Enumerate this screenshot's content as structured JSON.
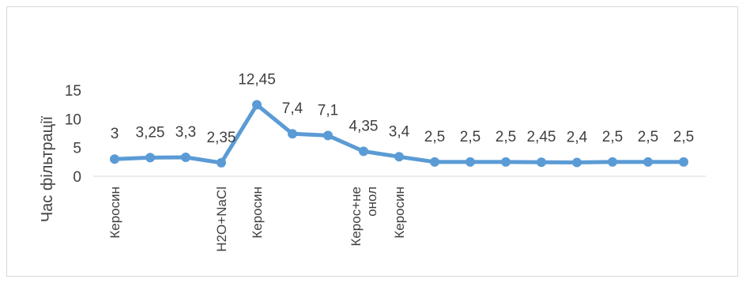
{
  "chart_data": {
    "type": "line",
    "title": "",
    "xlabel": "",
    "ylabel": "Час фільтрації",
    "ylim": [
      0,
      15
    ],
    "yticks": [
      "0",
      "5",
      "10",
      "15"
    ],
    "grid": false,
    "legend": "none",
    "line_color": "#5b9bd5",
    "categories": [
      "Керосин",
      "",
      "",
      "H2O+NaCl",
      "Керосин",
      "",
      "",
      "Керос+не онол",
      "Керосин",
      "",
      "",
      "",
      "",
      "",
      "",
      "",
      ""
    ],
    "category_lines": [
      [
        "Керосин"
      ],
      [],
      [],
      [
        "H2O+NaCl"
      ],
      [
        "Керосин"
      ],
      [],
      [],
      [
        "Керос+не",
        "онол"
      ],
      [
        "Керосин"
      ],
      [],
      [],
      [],
      [],
      [],
      [],
      [],
      []
    ],
    "values": [
      3,
      3.25,
      3.3,
      2.35,
      12.45,
      7.4,
      7.1,
      4.35,
      3.4,
      2.5,
      2.5,
      2.5,
      2.45,
      2.4,
      2.5,
      2.5,
      2.5
    ],
    "data_labels": [
      "3",
      "3,25",
      "3,3",
      "2,35",
      "12,45",
      "7,4",
      "7,1",
      "4,35",
      "3,4",
      "2,5",
      "2,5",
      "2,5",
      "2,45",
      "2,4",
      "2,5",
      "2,5",
      "2,5"
    ]
  }
}
